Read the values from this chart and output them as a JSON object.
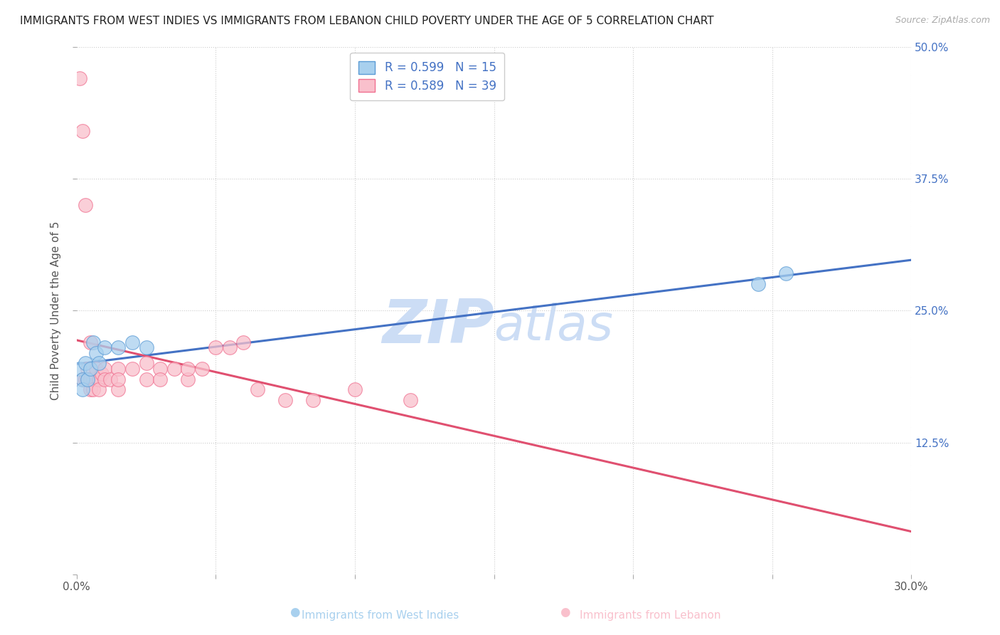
{
  "title": "IMMIGRANTS FROM WEST INDIES VS IMMIGRANTS FROM LEBANON CHILD POVERTY UNDER THE AGE OF 5 CORRELATION CHART",
  "source": "Source: ZipAtlas.com",
  "xlabel_west_indies": "Immigrants from West Indies",
  "xlabel_lebanon": "Immigrants from Lebanon",
  "ylabel": "Child Poverty Under the Age of 5",
  "xlim": [
    0.0,
    0.3
  ],
  "ylim": [
    0.0,
    0.5
  ],
  "R_west_indies": 0.599,
  "N_west_indies": 15,
  "R_lebanon": 0.589,
  "N_lebanon": 39,
  "color_west_indies_fill": "#a8d0ee",
  "color_west_indies_edge": "#5b9bd5",
  "color_lebanon_fill": "#f9c0cc",
  "color_lebanon_edge": "#f07090",
  "color_line_west_indies": "#4472c4",
  "color_line_lebanon": "#e05070",
  "color_tick_right": "#4472c4",
  "color_source": "#aaaaaa",
  "watermark_color": "#ccddf5",
  "wi_x": [
    0.001,
    0.002,
    0.002,
    0.003,
    0.004,
    0.005,
    0.006,
    0.007,
    0.008,
    0.01,
    0.015,
    0.02,
    0.025,
    0.245,
    0.255
  ],
  "wi_y": [
    0.195,
    0.185,
    0.175,
    0.2,
    0.185,
    0.195,
    0.22,
    0.21,
    0.2,
    0.215,
    0.215,
    0.22,
    0.215,
    0.275,
    0.285
  ],
  "lb_x": [
    0.001,
    0.001,
    0.002,
    0.002,
    0.003,
    0.003,
    0.003,
    0.004,
    0.004,
    0.005,
    0.005,
    0.006,
    0.006,
    0.007,
    0.008,
    0.008,
    0.009,
    0.01,
    0.01,
    0.012,
    0.013,
    0.015,
    0.015,
    0.02,
    0.02,
    0.025,
    0.025,
    0.03,
    0.035,
    0.04,
    0.045,
    0.05,
    0.055,
    0.06,
    0.065,
    0.08,
    0.09,
    0.105,
    0.12
  ],
  "lb_y": [
    0.47,
    0.185,
    0.175,
    0.195,
    0.185,
    0.175,
    0.18,
    0.195,
    0.185,
    0.2,
    0.185,
    0.175,
    0.19,
    0.195,
    0.185,
    0.175,
    0.19,
    0.195,
    0.185,
    0.185,
    0.195,
    0.175,
    0.185,
    0.195,
    0.185,
    0.2,
    0.185,
    0.195,
    0.185,
    0.195,
    0.195,
    0.215,
    0.215,
    0.22,
    0.225,
    0.175,
    0.165,
    0.175,
    0.165
  ]
}
